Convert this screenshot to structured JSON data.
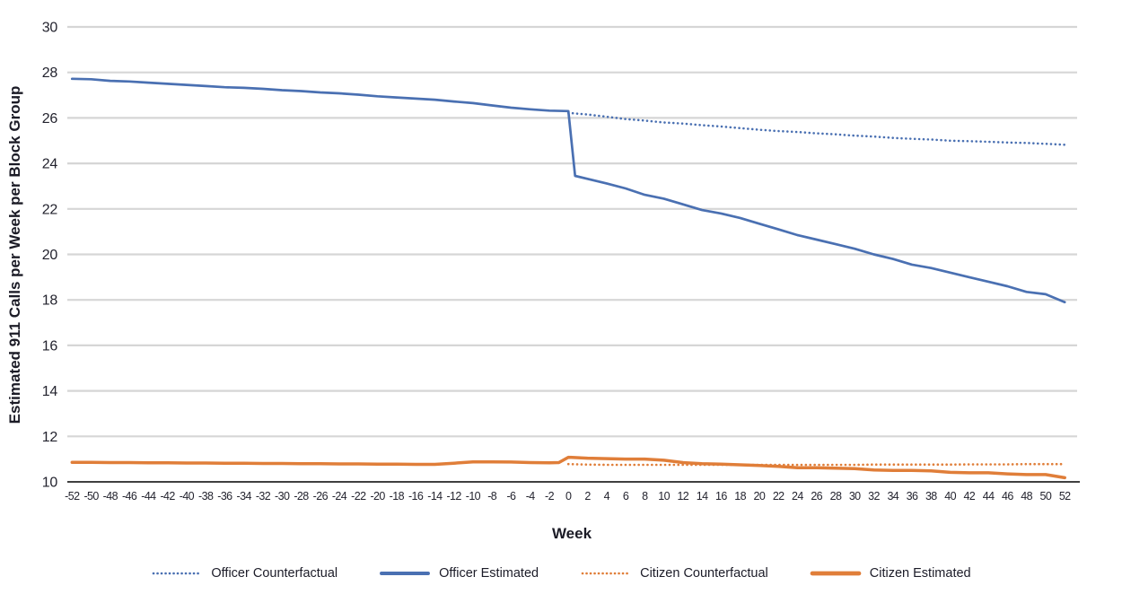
{
  "chart_data": {
    "type": "line",
    "title": "",
    "xlabel": "Week",
    "ylabel": "Estimated 911 Calls per Week per Block Group",
    "xlim": [
      -52.5,
      53.3
    ],
    "ylim": [
      10,
      30
    ],
    "xticks": [
      -52,
      -50,
      -48,
      -46,
      -44,
      -42,
      -40,
      -38,
      -36,
      -34,
      -32,
      -30,
      -28,
      -26,
      -24,
      -22,
      -20,
      -18,
      -16,
      -14,
      -12,
      -10,
      -8,
      -6,
      -4,
      -2,
      0,
      2,
      4,
      6,
      8,
      10,
      12,
      14,
      16,
      18,
      20,
      22,
      24,
      26,
      28,
      30,
      32,
      34,
      36,
      38,
      40,
      42,
      44,
      46,
      48,
      50,
      52
    ],
    "yticks": [
      10,
      12,
      14,
      16,
      18,
      20,
      22,
      24,
      26,
      28,
      30
    ],
    "grid": "horizontal",
    "legend_position": "bottom",
    "colors": {
      "officer_blue": "#4a70b2",
      "citizen_orange": "#e07e39",
      "gridline_gray": "#d6d6d6",
      "axis_black": "#000000"
    },
    "series": [
      {
        "name": "Officer Counterfactual",
        "color": "#4a70b2",
        "dash": "dotted",
        "width": 2.6,
        "x": [
          0,
          2,
          4,
          6,
          8,
          10,
          12,
          14,
          16,
          18,
          20,
          22,
          24,
          26,
          28,
          30,
          32,
          34,
          36,
          38,
          40,
          42,
          44,
          46,
          48,
          50,
          52
        ],
        "values": [
          26.22,
          26.15,
          26.05,
          25.95,
          25.88,
          25.8,
          25.75,
          25.68,
          25.62,
          25.55,
          25.48,
          25.42,
          25.38,
          25.32,
          25.28,
          25.22,
          25.18,
          25.12,
          25.08,
          25.05,
          25.0,
          24.98,
          24.95,
          24.92,
          24.9,
          24.86,
          24.82
        ]
      },
      {
        "name": "Officer Estimated",
        "color": "#4a70b2",
        "dash": "solid",
        "width": 2.7,
        "x": [
          -52,
          -50,
          -48,
          -46,
          -44,
          -42,
          -40,
          -38,
          -36,
          -34,
          -32,
          -30,
          -28,
          -26,
          -24,
          -22,
          -20,
          -18,
          -16,
          -14,
          -12,
          -10,
          -8,
          -6,
          -4,
          -2,
          0,
          0.7,
          2,
          4,
          6,
          8,
          10,
          12,
          14,
          16,
          18,
          20,
          22,
          24,
          26,
          28,
          30,
          32,
          34,
          36,
          38,
          40,
          42,
          44,
          46,
          48,
          50,
          52
        ],
        "values": [
          27.72,
          27.7,
          27.63,
          27.6,
          27.55,
          27.5,
          27.45,
          27.4,
          27.35,
          27.32,
          27.28,
          27.22,
          27.18,
          27.12,
          27.08,
          27.02,
          26.95,
          26.9,
          26.85,
          26.8,
          26.72,
          26.65,
          26.55,
          26.45,
          26.38,
          26.32,
          26.3,
          23.45,
          23.32,
          23.12,
          22.9,
          22.62,
          22.45,
          22.2,
          21.95,
          21.8,
          21.6,
          21.35,
          21.1,
          20.85,
          20.65,
          20.45,
          20.25,
          20.0,
          19.8,
          19.55,
          19.4,
          19.2,
          19.0,
          18.8,
          18.6,
          18.35,
          18.25,
          17.9
        ]
      },
      {
        "name": "Citizen Counterfactual",
        "color": "#e07e39",
        "dash": "dotted",
        "width": 2.6,
        "x": [
          0,
          2,
          4,
          6,
          8,
          10,
          12,
          14,
          16,
          18,
          20,
          22,
          24,
          26,
          28,
          30,
          32,
          34,
          36,
          38,
          40,
          42,
          44,
          46,
          48,
          50,
          52
        ],
        "values": [
          10.78,
          10.76,
          10.75,
          10.75,
          10.75,
          10.75,
          10.75,
          10.75,
          10.75,
          10.75,
          10.75,
          10.75,
          10.75,
          10.75,
          10.75,
          10.75,
          10.76,
          10.76,
          10.76,
          10.76,
          10.76,
          10.77,
          10.77,
          10.77,
          10.78,
          10.78,
          10.78
        ]
      },
      {
        "name": "Citizen Estimated",
        "color": "#e07e39",
        "dash": "solid",
        "width": 3.5,
        "x": [
          -52,
          -50,
          -48,
          -46,
          -44,
          -42,
          -40,
          -38,
          -36,
          -34,
          -32,
          -30,
          -28,
          -26,
          -24,
          -22,
          -20,
          -18,
          -16,
          -14,
          -12,
          -10,
          -8,
          -6,
          -4,
          -2,
          -1,
          0,
          2,
          4,
          6,
          8,
          10,
          12,
          14,
          16,
          18,
          20,
          22,
          24,
          26,
          28,
          30,
          32,
          34,
          36,
          38,
          40,
          42,
          44,
          46,
          48,
          50,
          52
        ],
        "values": [
          10.86,
          10.86,
          10.85,
          10.85,
          10.84,
          10.84,
          10.83,
          10.83,
          10.82,
          10.82,
          10.81,
          10.81,
          10.8,
          10.8,
          10.79,
          10.79,
          10.78,
          10.78,
          10.77,
          10.77,
          10.82,
          10.88,
          10.88,
          10.87,
          10.85,
          10.84,
          10.85,
          11.08,
          11.04,
          11.02,
          11.0,
          11.0,
          10.95,
          10.85,
          10.8,
          10.78,
          10.75,
          10.72,
          10.68,
          10.62,
          10.62,
          10.6,
          10.58,
          10.52,
          10.5,
          10.5,
          10.48,
          10.42,
          10.4,
          10.4,
          10.35,
          10.32,
          10.32,
          10.18
        ]
      }
    ],
    "legend_labels": [
      "Officer Counterfactual",
      "Officer Estimated",
      "Citizen Counterfactual",
      "Citizen Estimated"
    ]
  }
}
